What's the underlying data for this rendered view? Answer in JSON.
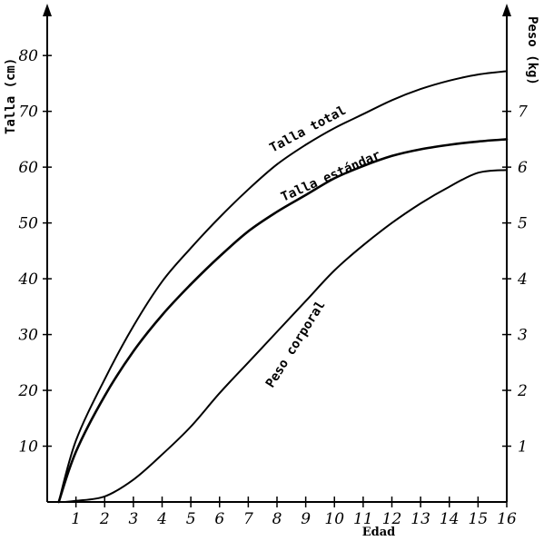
{
  "chart_data": {
    "type": "line",
    "xlabel": "Edad",
    "ylabel_left": "Talla (cm)",
    "ylabel_right": "Peso (kg)",
    "x_ticks": [
      1,
      2,
      3,
      4,
      5,
      6,
      7,
      8,
      9,
      10,
      11,
      12,
      13,
      14,
      15,
      16
    ],
    "y_left_ticks": [
      10,
      20,
      30,
      40,
      50,
      60,
      70,
      80
    ],
    "y_right_ticks": [
      1,
      2,
      3,
      4,
      5,
      6,
      7
    ],
    "xlim": [
      0,
      16
    ],
    "y_left_lim": [
      0,
      88
    ],
    "y_right_lim": [
      0,
      8.8
    ],
    "series": [
      {
        "name": "Talla total",
        "axis": "left",
        "x": [
          0.4,
          1,
          2,
          3,
          4,
          5,
          6,
          7,
          8,
          9,
          10,
          11,
          12,
          13,
          14,
          15,
          16
        ],
        "y": [
          0,
          11,
          22,
          31.5,
          39.5,
          45.5,
          51,
          56,
          60.5,
          64,
          67,
          69.5,
          72,
          74,
          75.5,
          76.6,
          77.2
        ]
      },
      {
        "name": "Talla estándar",
        "axis": "left",
        "x": [
          0.4,
          1,
          2,
          3,
          4,
          5,
          6,
          7,
          8,
          9,
          10,
          11,
          12,
          13,
          14,
          15,
          16
        ],
        "y": [
          0,
          9,
          19,
          27,
          33.5,
          39,
          44,
          48.5,
          52,
          55,
          58,
          60.2,
          62,
          63.2,
          64,
          64.6,
          65
        ]
      },
      {
        "name": "Peso corporal",
        "axis": "right",
        "x": [
          0.6,
          1,
          2,
          3,
          4,
          5,
          6,
          7,
          8,
          9,
          10,
          11,
          12,
          13,
          14,
          15,
          16
        ],
        "y": [
          0,
          0.02,
          0.1,
          0.4,
          0.85,
          1.35,
          1.95,
          2.5,
          3.05,
          3.6,
          4.15,
          4.6,
          5.0,
          5.35,
          5.65,
          5.9,
          5.95
        ]
      }
    ]
  }
}
